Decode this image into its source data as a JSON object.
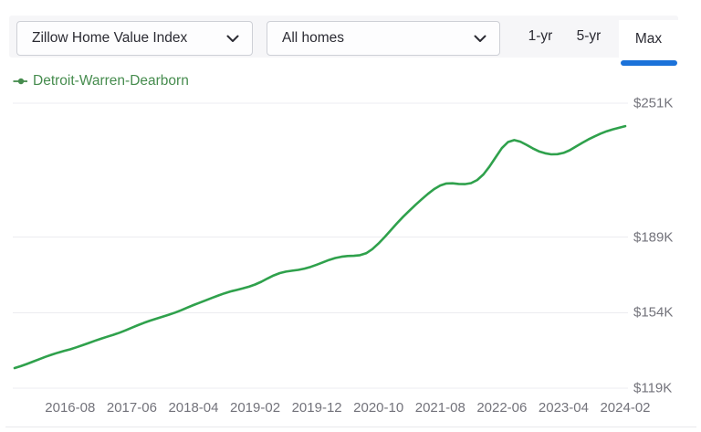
{
  "toolbar": {
    "metric_dropdown": {
      "value": "Zillow Home Value Index"
    },
    "segment_dropdown": {
      "value": "All homes"
    },
    "range_buttons": [
      {
        "label": "1-yr",
        "active": false
      },
      {
        "label": "5-yr",
        "active": false
      },
      {
        "label": "Max",
        "active": true
      }
    ]
  },
  "legend": {
    "series_label": "Detroit-Warren-Dearborn"
  },
  "colors": {
    "line_green": "#2fa14c",
    "legend_green": "#468c4e",
    "active_tab_blue": "#1b72d9",
    "axis_text_gray": "#73737b",
    "gridline_gray": "#ececf0"
  },
  "chart_data": {
    "type": "line",
    "grid": "horizontal-only",
    "legend_position": "top-left",
    "x_tick_labels": [
      "2016-08",
      "2017-06",
      "2018-04",
      "2019-02",
      "2019-12",
      "2020-10",
      "2021-08",
      "2022-06",
      "2023-04",
      "2024-02"
    ],
    "y_ticks": [
      {
        "label": "$119K",
        "value": 119
      },
      {
        "label": "$154K",
        "value": 154
      },
      {
        "label": "$189K",
        "value": 189
      },
      {
        "label": "$251K",
        "value": 251
      }
    ],
    "ylim": [
      119,
      251
    ],
    "unit": "USD thousands",
    "series": [
      {
        "name": "Detroit-Warren-Dearborn",
        "color": "#2fa14c",
        "interval": "monthly",
        "start_month": "2015-11",
        "end_month": "2024-02",
        "values": [
          128.3,
          129.2,
          130.2,
          131.3,
          132.4,
          133.5,
          134.5,
          135.4,
          136.2,
          137.0,
          137.9,
          138.9,
          139.9,
          140.9,
          141.9,
          142.8,
          143.7,
          144.7,
          145.8,
          147.0,
          148.2,
          149.3,
          150.3,
          151.2,
          152.1,
          153.0,
          154.0,
          155.1,
          156.3,
          157.5,
          158.6,
          159.7,
          160.8,
          161.9,
          162.9,
          163.8,
          164.5,
          165.2,
          166.0,
          167.0,
          168.3,
          169.8,
          171.2,
          172.3,
          173.0,
          173.4,
          173.8,
          174.4,
          175.2,
          176.2,
          177.3,
          178.4,
          179.3,
          179.9,
          180.2,
          180.3,
          180.6,
          181.5,
          183.4,
          186.0,
          189.0,
          192.2,
          195.4,
          198.4,
          201.2,
          203.9,
          206.5,
          209.0,
          211.2,
          212.9,
          213.8,
          213.9,
          213.6,
          213.5,
          214.0,
          215.4,
          218.0,
          221.7,
          226.0,
          230.2,
          233.0,
          233.9,
          233.2,
          231.7,
          230.1,
          228.7,
          227.8,
          227.3,
          227.4,
          228.0,
          229.2,
          230.9,
          232.6,
          234.2,
          235.6,
          236.9,
          238.0,
          238.9,
          239.6,
          240.4
        ]
      }
    ]
  }
}
